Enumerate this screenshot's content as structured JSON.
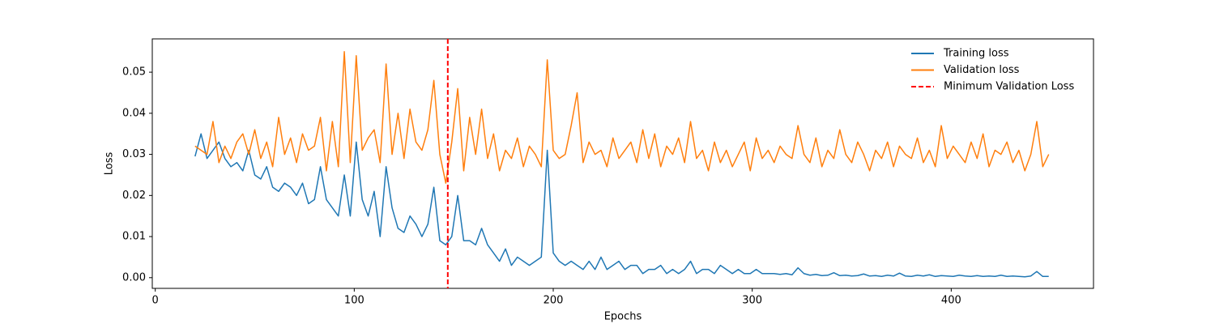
{
  "chart_data": {
    "type": "line",
    "x_label": "Epochs",
    "y_label": "Loss",
    "x": [
      20,
      23,
      26,
      29,
      32,
      35,
      38,
      41,
      44,
      47,
      50,
      53,
      56,
      59,
      62,
      65,
      68,
      71,
      74,
      77,
      80,
      83,
      86,
      89,
      92,
      95,
      98,
      101,
      104,
      107,
      110,
      113,
      116,
      119,
      122,
      125,
      128,
      131,
      134,
      137,
      140,
      143,
      146,
      149,
      152,
      155,
      158,
      161,
      164,
      167,
      170,
      173,
      176,
      179,
      182,
      185,
      188,
      191,
      194,
      197,
      200,
      203,
      206,
      209,
      212,
      215,
      218,
      221,
      224,
      227,
      230,
      233,
      236,
      239,
      242,
      245,
      248,
      251,
      254,
      257,
      260,
      263,
      266,
      269,
      272,
      275,
      278,
      281,
      284,
      287,
      290,
      293,
      296,
      299,
      302,
      305,
      308,
      311,
      314,
      317,
      320,
      323,
      326,
      329,
      332,
      335,
      338,
      341,
      344,
      347,
      350,
      353,
      356,
      359,
      362,
      365,
      368,
      371,
      374,
      377,
      380,
      383,
      386,
      389,
      392,
      395,
      398,
      401,
      404,
      407,
      410,
      413,
      416,
      419,
      422,
      425,
      428,
      431,
      434,
      437,
      440,
      443,
      446,
      449
    ],
    "series": [
      {
        "name": "Training loss",
        "color": "#1f77b4",
        "values": [
          0.0295,
          0.035,
          0.029,
          0.031,
          0.033,
          0.029,
          0.027,
          0.028,
          0.026,
          0.031,
          0.025,
          0.024,
          0.027,
          0.022,
          0.021,
          0.023,
          0.022,
          0.02,
          0.023,
          0.018,
          0.019,
          0.027,
          0.019,
          0.017,
          0.015,
          0.025,
          0.015,
          0.033,
          0.019,
          0.015,
          0.021,
          0.01,
          0.027,
          0.017,
          0.012,
          0.011,
          0.015,
          0.013,
          0.01,
          0.013,
          0.022,
          0.009,
          0.008,
          0.01,
          0.02,
          0.009,
          0.009,
          0.008,
          0.012,
          0.008,
          0.006,
          0.004,
          0.007,
          0.003,
          0.005,
          0.004,
          0.003,
          0.004,
          0.005,
          0.031,
          0.006,
          0.004,
          0.003,
          0.004,
          0.003,
          0.002,
          0.004,
          0.002,
          0.005,
          0.002,
          0.003,
          0.004,
          0.002,
          0.003,
          0.003,
          0.001,
          0.002,
          0.002,
          0.003,
          0.001,
          0.002,
          0.001,
          0.002,
          0.004,
          0.001,
          0.002,
          0.002,
          0.001,
          0.003,
          0.002,
          0.001,
          0.002,
          0.001,
          0.001,
          0.002,
          0.001,
          0.001,
          0.001,
          0.0008,
          0.001,
          0.0007,
          0.0024,
          0.001,
          0.0006,
          0.0008,
          0.0005,
          0.0006,
          0.0012,
          0.0005,
          0.0006,
          0.0004,
          0.0005,
          0.0009,
          0.0004,
          0.0005,
          0.0003,
          0.0006,
          0.0004,
          0.0011,
          0.0004,
          0.0003,
          0.0006,
          0.0004,
          0.0007,
          0.0003,
          0.0005,
          0.0004,
          0.0003,
          0.0006,
          0.0004,
          0.0003,
          0.0005,
          0.0003,
          0.0004,
          0.0003,
          0.0006,
          0.0003,
          0.0004,
          0.0003,
          0.0002,
          0.0004,
          0.0015,
          0.0003,
          0.0003
        ]
      },
      {
        "name": "Validation loss",
        "color": "#ff7f0e",
        "values": [
          0.032,
          0.031,
          0.03,
          0.038,
          0.028,
          0.032,
          0.029,
          0.033,
          0.035,
          0.03,
          0.036,
          0.029,
          0.033,
          0.027,
          0.039,
          0.03,
          0.034,
          0.028,
          0.035,
          0.031,
          0.032,
          0.039,
          0.026,
          0.038,
          0.027,
          0.055,
          0.028,
          0.054,
          0.031,
          0.034,
          0.036,
          0.028,
          0.052,
          0.03,
          0.04,
          0.029,
          0.041,
          0.033,
          0.031,
          0.036,
          0.048,
          0.03,
          0.023,
          0.033,
          0.046,
          0.026,
          0.039,
          0.03,
          0.041,
          0.029,
          0.035,
          0.026,
          0.031,
          0.029,
          0.034,
          0.027,
          0.032,
          0.03,
          0.027,
          0.053,
          0.031,
          0.029,
          0.03,
          0.037,
          0.045,
          0.028,
          0.033,
          0.03,
          0.031,
          0.027,
          0.034,
          0.029,
          0.031,
          0.033,
          0.028,
          0.036,
          0.029,
          0.035,
          0.027,
          0.032,
          0.03,
          0.034,
          0.028,
          0.038,
          0.029,
          0.031,
          0.026,
          0.033,
          0.028,
          0.031,
          0.027,
          0.03,
          0.033,
          0.026,
          0.034,
          0.029,
          0.031,
          0.028,
          0.032,
          0.03,
          0.029,
          0.037,
          0.03,
          0.028,
          0.034,
          0.027,
          0.031,
          0.029,
          0.036,
          0.03,
          0.028,
          0.033,
          0.03,
          0.026,
          0.031,
          0.029,
          0.033,
          0.027,
          0.032,
          0.03,
          0.029,
          0.034,
          0.028,
          0.031,
          0.027,
          0.037,
          0.029,
          0.032,
          0.03,
          0.028,
          0.033,
          0.029,
          0.035,
          0.027,
          0.031,
          0.03,
          0.033,
          0.028,
          0.031,
          0.026,
          0.03,
          0.038,
          0.027,
          0.03
        ]
      }
    ],
    "vlines": [
      {
        "name": "Minimum Validation Loss",
        "x": 147,
        "color": "#ff0000",
        "dashed": true
      }
    ],
    "xlim": [
      -1.5,
      471.5
    ],
    "ylim": [
      -0.0026,
      0.0581
    ],
    "xticks": [
      0,
      100,
      200,
      300,
      400
    ],
    "yticks": [
      {
        "value": 0,
        "label": "0.00"
      },
      {
        "value": 0.01,
        "label": "0.01"
      },
      {
        "value": 0.02,
        "label": "0.02"
      },
      {
        "value": 0.03,
        "label": "0.03"
      },
      {
        "value": 0.04,
        "label": "0.04"
      },
      {
        "value": 0.05,
        "label": "0.05"
      }
    ],
    "grid": false,
    "legend": "upper right"
  }
}
